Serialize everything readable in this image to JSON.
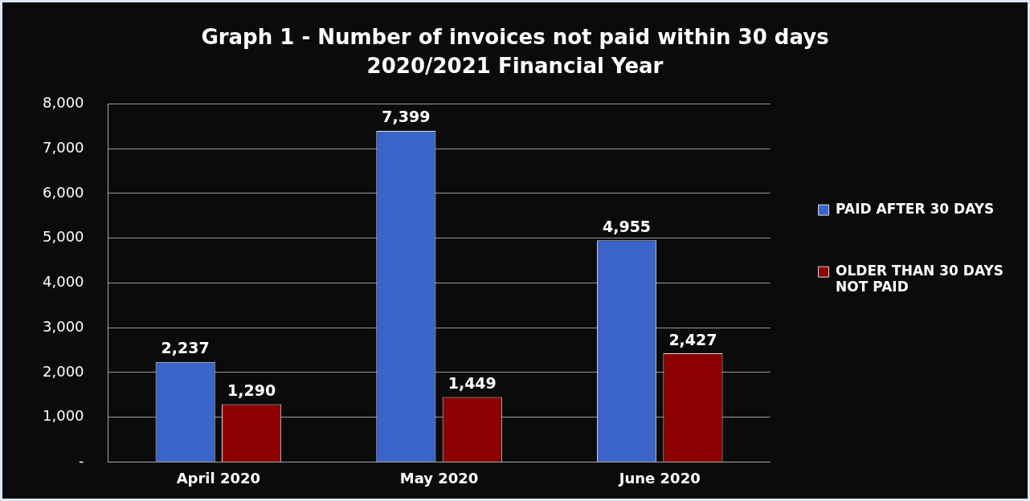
{
  "chart_data": {
    "type": "bar",
    "title": "Graph 1 - Number of invoices not paid within 30 days",
    "subtitle": "2020/2021 Financial Year",
    "categories": [
      "April 2020",
      "May 2020",
      "June 2020"
    ],
    "series": [
      {
        "name": "PAID AFTER 30 DAYS",
        "color": "#3a64c8",
        "values": [
          2237,
          7399,
          4955
        ],
        "value_labels": [
          "2,237",
          "7,399",
          "4,955"
        ]
      },
      {
        "name": "OLDER THAN 30 DAYS NOT PAID",
        "color": "#8b0000",
        "values": [
          1290,
          1449,
          2427
        ],
        "value_labels": [
          "1,290",
          "1,449",
          "2,427"
        ]
      }
    ],
    "ylim": [
      0,
      8000
    ],
    "yticks": [
      {
        "value": 0,
        "label": "-"
      },
      {
        "value": 1000,
        "label": "1,000"
      },
      {
        "value": 2000,
        "label": "2,000"
      },
      {
        "value": 3000,
        "label": "3,000"
      },
      {
        "value": 4000,
        "label": "4,000"
      },
      {
        "value": 5000,
        "label": "5,000"
      },
      {
        "value": 6000,
        "label": "6,000"
      },
      {
        "value": 7000,
        "label": "7,000"
      },
      {
        "value": 8000,
        "label": "8,000"
      }
    ],
    "grid": "y",
    "legend": "right"
  }
}
